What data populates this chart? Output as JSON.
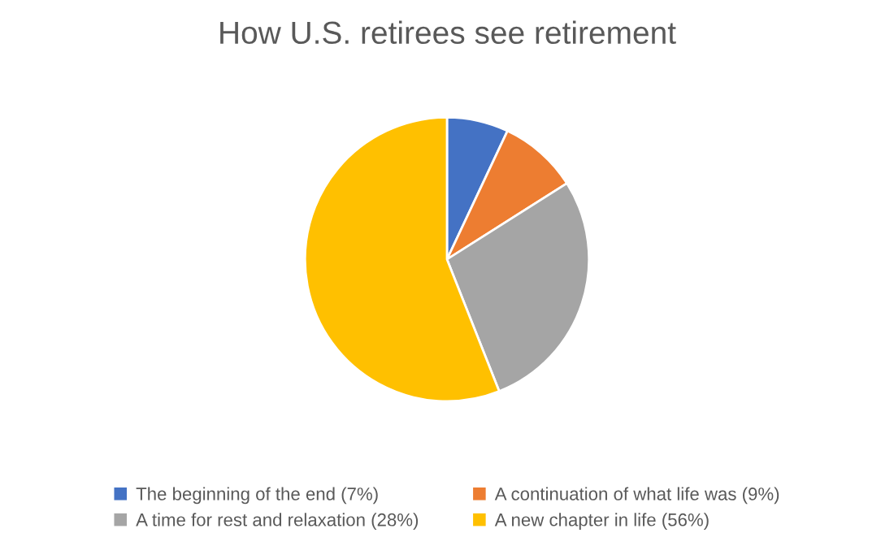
{
  "chart_data": {
    "type": "pie",
    "title": "How U.S. retirees see retirement",
    "categories": [
      "The beginning of the end (7%)",
      "A continuation of what life was (9%)",
      "A time for rest and relaxation (28%)",
      "A new chapter in life (56%)"
    ],
    "values": [
      7,
      9,
      28,
      56
    ],
    "colors": [
      "#4472c4",
      "#ed7d31",
      "#a5a5a5",
      "#ffc000"
    ],
    "legend": "bottom"
  }
}
